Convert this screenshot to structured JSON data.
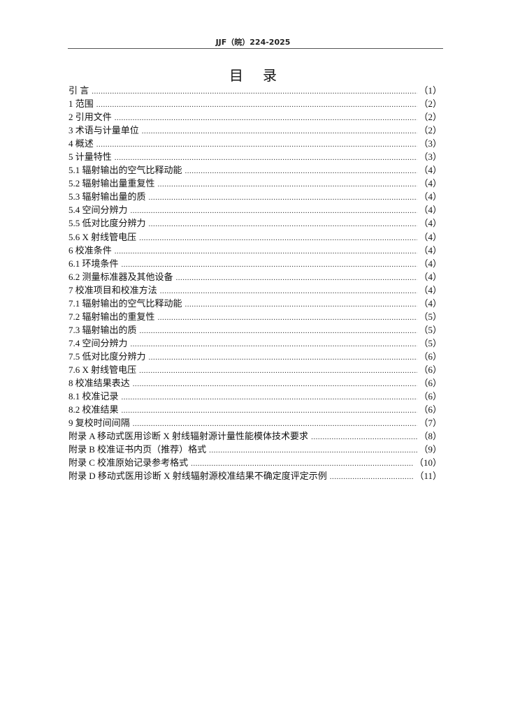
{
  "header": {
    "code": "JJF（皖）224-2025"
  },
  "title": "目录",
  "toc": [
    {
      "label": "引  言",
      "page": "（1）"
    },
    {
      "label": "1  范围",
      "page": "（2）"
    },
    {
      "label": "2  引用文件",
      "page": "（2）"
    },
    {
      "label": "3  术语与计量单位",
      "page": "（2）"
    },
    {
      "label": "4  概述",
      "page": "（3）"
    },
    {
      "label": "5  计量特性",
      "page": "（3）"
    },
    {
      "label": "5.1  辐射输出的空气比释动能",
      "page": "（4）"
    },
    {
      "label": "5.2  辐射输出量重复性",
      "page": "（4）"
    },
    {
      "label": "5.3  辐射输出量的质",
      "page": "（4）"
    },
    {
      "label": "5.4  空间分辨力",
      "page": "（4）"
    },
    {
      "label": "5.5  低对比度分辨力",
      "page": "（4）"
    },
    {
      "label": "5.6 X 射线管电压",
      "page": "（4）"
    },
    {
      "label": "6  校准条件",
      "page": "（4）"
    },
    {
      "label": "6.1  环境条件",
      "page": "（4）"
    },
    {
      "label": "6.2  测量标准器及其他设备",
      "page": "（4）"
    },
    {
      "label": "7  校准项目和校准方法",
      "page": "（4）"
    },
    {
      "label": "7.1 辐射输出的空气比释动能",
      "page": "（4）"
    },
    {
      "label": "7.2  辐射输出的重复性",
      "page": "（5）"
    },
    {
      "label": "7.3  辐射输出的质",
      "page": "（5）"
    },
    {
      "label": "7.4  空间分辨力",
      "page": "（5）"
    },
    {
      "label": "7.5  低对比度分辨力",
      "page": "（6）"
    },
    {
      "label": "7.6 X 射线管电压",
      "page": "（6）"
    },
    {
      "label": "8  校准结果表达",
      "page": "（6）"
    },
    {
      "label": "8.1 校准记录",
      "page": "（6）"
    },
    {
      "label": "8.2 校准结果",
      "page": "（6）"
    },
    {
      "label": "9  复校时间间隔",
      "page": "（7）"
    },
    {
      "label": "附录 A 移动式医用诊断 X 射线辐射源计量性能模体技术要求",
      "page": "（8）"
    },
    {
      "label": "附录 B 校准证书内页（推荐）格式",
      "page": "（9）"
    },
    {
      "label": "附录 C 校准原始记录参考格式",
      "page": "（10）"
    },
    {
      "label": "附录 D 移动式医用诊断 X 射线辐射源校准结果不确定度评定示例",
      "page": "（11）"
    }
  ]
}
